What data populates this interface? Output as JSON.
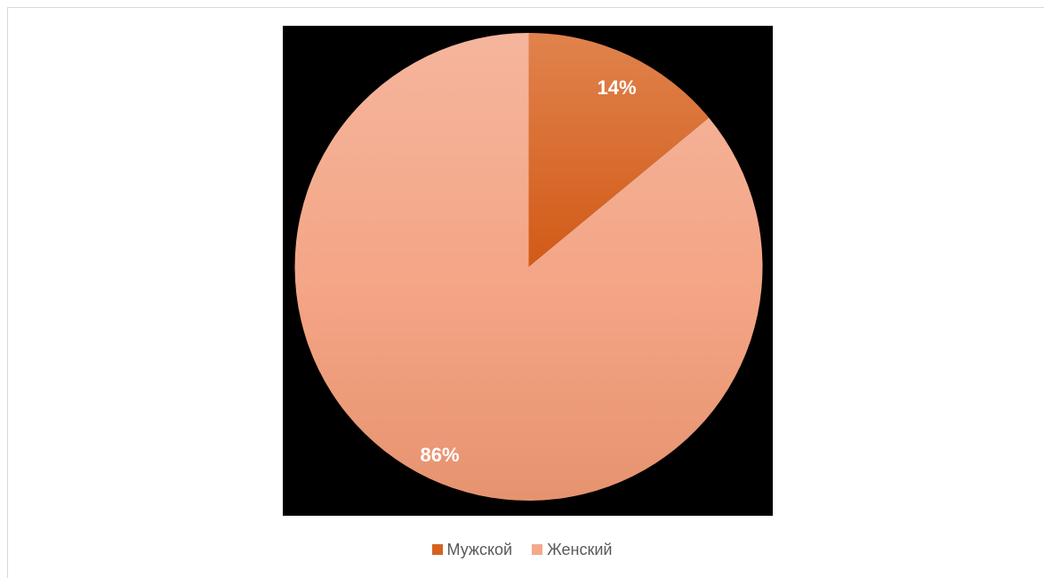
{
  "chart_data": {
    "type": "pie",
    "categories": [
      "Мужской",
      "Женский"
    ],
    "values": [
      14,
      86
    ],
    "data_labels": [
      "14%",
      "86%"
    ],
    "colors": [
      "#D5621F",
      "#F4A98A"
    ],
    "legend_position": "bottom",
    "plot_background": "#000000"
  },
  "legend": {
    "items": [
      {
        "label": "Мужской",
        "color": "#D5621F"
      },
      {
        "label": "Женский",
        "color": "#F4A98A"
      }
    ]
  }
}
